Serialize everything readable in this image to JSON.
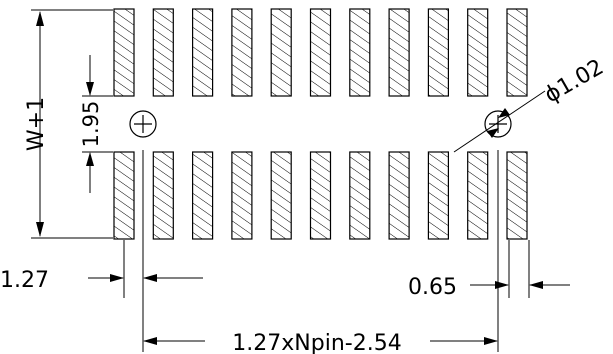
{
  "drawing": {
    "pin_count_per_row": 11,
    "rows": 2
  },
  "dimensions": {
    "row_span_label": "W+1",
    "row_gap_label": "1.95",
    "hole_diameter_label": "ϕ1.02",
    "pitch_label": "1.27",
    "pad_width_label": "0.65",
    "total_span_label": "1.27xNpin-2.54"
  }
}
